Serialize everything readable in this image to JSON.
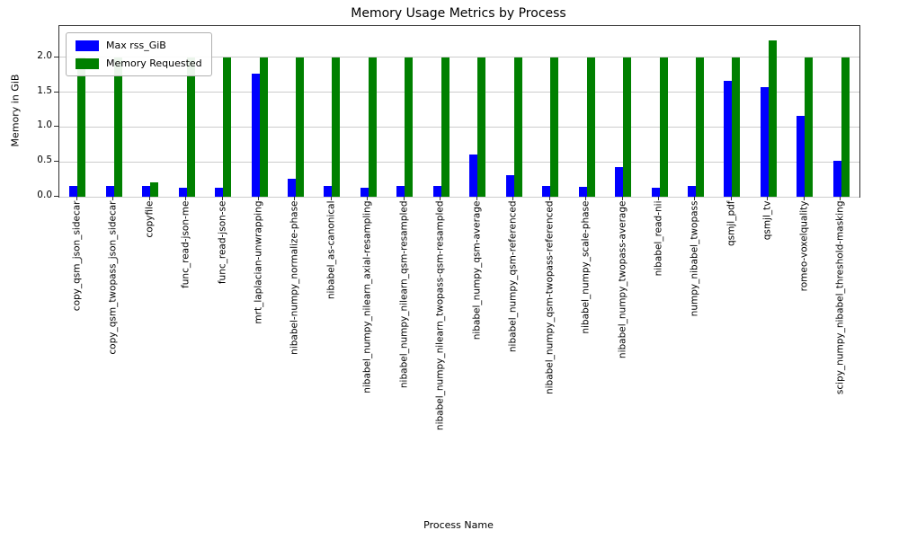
{
  "chart_data": {
    "type": "bar",
    "title": "Memory Usage Metrics by Process",
    "xlabel": "Process Name",
    "ylabel": "Memory in GiB",
    "ylim": [
      0,
      2.45
    ],
    "yticks": [
      0.0,
      0.5,
      1.0,
      1.5,
      2.0
    ],
    "grid": true,
    "legend_position": "upper left",
    "categories": [
      "copy_qsm_json_sidecar",
      "copy_qsm_twopass_json_sidecar",
      "copyfile",
      "func_read-json-me",
      "func_read-json-se",
      "mrt_laplacian-unwrapping",
      "nibabel-numpy_normalize-phase",
      "nibabel_as-canonical",
      "nibabel_numpy_nilearn_axial-resampling",
      "nibabel_numpy_nilearn_qsm-resampled",
      "nibabel_numpy_nilearn_twopass-qsm-resampled",
      "nibabel_numpy_qsm-average",
      "nibabel_numpy_qsm-referenced",
      "nibabel_numpy_qsm-twopass-referenced",
      "nibabel_numpy_scale-phase",
      "nibabel_numpy_twopass-average",
      "nibabel_read-nii",
      "numpy_nibabel_twopass",
      "qsmjl_pdf",
      "qsmjl_tv",
      "romeo-voxelquality",
      "scipy_numpy_nibabel_threshold-masking"
    ],
    "series": [
      {
        "name": "Max rss_GiB",
        "color": "#0000ff",
        "values": [
          0.15,
          0.15,
          0.15,
          0.13,
          0.13,
          1.77,
          0.26,
          0.15,
          0.13,
          0.16,
          0.15,
          0.6,
          0.31,
          0.15,
          0.14,
          0.43,
          0.13,
          0.15,
          1.66,
          1.57,
          1.16,
          0.51
        ]
      },
      {
        "name": "Memory Requested",
        "color": "#008000",
        "values": [
          2.0,
          2.0,
          0.21,
          2.0,
          2.0,
          2.0,
          2.0,
          2.0,
          2.0,
          2.0,
          2.0,
          2.0,
          2.0,
          2.0,
          2.0,
          2.0,
          2.0,
          2.0,
          2.0,
          2.25,
          2.0,
          2.0
        ]
      }
    ]
  }
}
